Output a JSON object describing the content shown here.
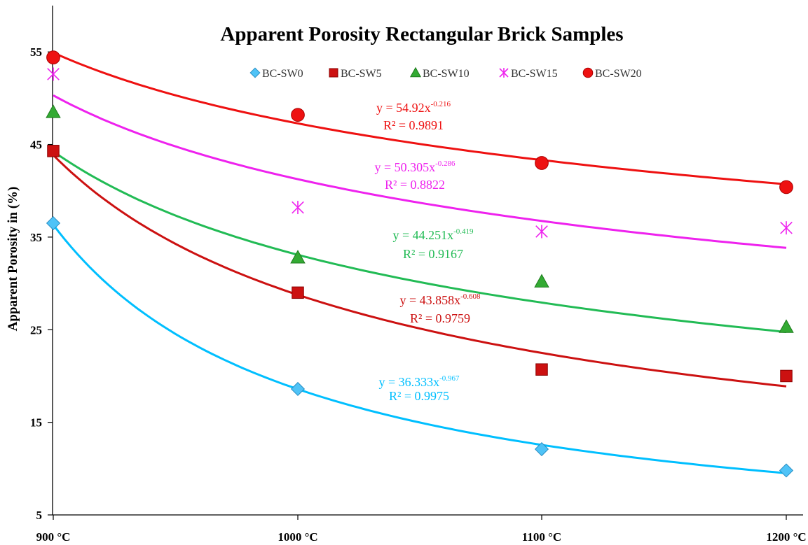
{
  "chart_data": {
    "type": "scatter",
    "title": "Apparent Porosity Rectangular Brick Samples",
    "ylabel": "Apparent  Porosity in  (%)",
    "xlabel": "",
    "categories": [
      "900 °C",
      "1000 °C",
      "1100 °C",
      "1200 °C"
    ],
    "ylim": [
      5,
      60
    ],
    "yticks": [
      5,
      15,
      25,
      35,
      45,
      55
    ],
    "grid": false,
    "legend_position": "top",
    "series": [
      {
        "name": "BC-SW0",
        "marker": "diamond",
        "color": "#4FC3F7",
        "line_color": "#00BFFF",
        "values": [
          36.5,
          18.6,
          12.1,
          9.8
        ],
        "trendline": {
          "a": 36.333,
          "b": -0.967
        },
        "equation": "y = 36.333x",
        "exponent": "-0.967",
        "r2": "R² = 0.9975"
      },
      {
        "name": "BC-SW5",
        "marker": "square",
        "color": "#CC1111",
        "line_color": "#CC1111",
        "values": [
          44.3,
          29.0,
          20.7,
          20.0
        ],
        "trendline": {
          "a": 43.858,
          "b": -0.608
        },
        "equation": "y = 43.858x",
        "exponent": "-0.608",
        "r2": "R² = 0.9759"
      },
      {
        "name": "BC-SW10",
        "marker": "triangle",
        "color": "#33AA33",
        "line_color": "#22BB55",
        "values": [
          48.5,
          32.8,
          30.2,
          25.3
        ],
        "trendline": {
          "a": 44.251,
          "b": -0.419
        },
        "equation": "y = 44.251x",
        "exponent": "-0.419",
        "r2": "R² = 0.9167"
      },
      {
        "name": "BC-SW15",
        "marker": "asterisk",
        "color": "#EE22EE",
        "line_color": "#EE22EE",
        "values": [
          52.6,
          38.2,
          35.6,
          36.0
        ],
        "trendline": {
          "a": 50.305,
          "b": -0.286
        },
        "equation": "y = 50.305x",
        "exponent": "-0.286",
        "r2": "R² = 0.8822"
      },
      {
        "name": "BC-SW20",
        "marker": "circle",
        "color": "#EE1111",
        "line_color": "#EE1111",
        "values": [
          54.4,
          48.2,
          43.0,
          40.4
        ],
        "trendline": {
          "a": 54.92,
          "b": -0.216
        },
        "equation": "y = 54.92x",
        "exponent": "-0.216",
        "r2": "R² = 0.9891"
      }
    ]
  }
}
